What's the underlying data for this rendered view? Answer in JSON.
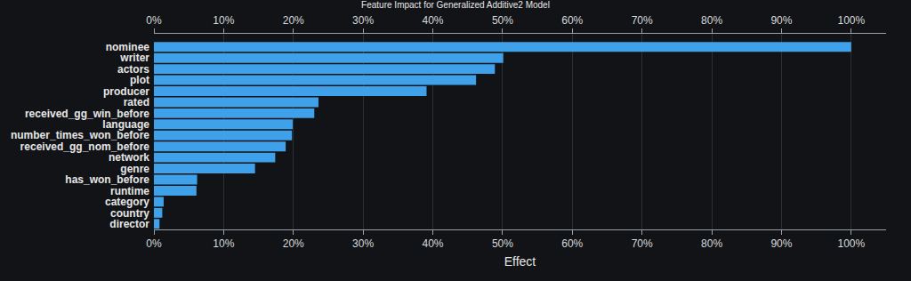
{
  "chart_data": {
    "type": "bar",
    "title": "Feature Impact for Generalized Additive2 Model",
    "x_label": "Effect",
    "orientation": "horizontal",
    "categories": [
      "nominee",
      "writer",
      "actors",
      "plot",
      "producer",
      "rated",
      "received_gg_win_before",
      "language",
      "number_times_won_before",
      "received_gg_nom_before",
      "network",
      "genre",
      "has_won_before",
      "runtime",
      "category",
      "country",
      "director"
    ],
    "values": [
      100,
      50.1,
      48.9,
      46.2,
      39.1,
      23.6,
      23.0,
      19.9,
      19.8,
      18.9,
      17.4,
      14.5,
      6.2,
      6.1,
      1.4,
      1.2,
      0.8
    ],
    "color": "#3ea1e9",
    "xlim": [
      0,
      105
    ],
    "xticks": [
      {
        "value": 0,
        "label": "0%"
      },
      {
        "value": 10,
        "label": "10%"
      },
      {
        "value": 20,
        "label": "20%"
      },
      {
        "value": 30,
        "label": "30%"
      },
      {
        "value": 40,
        "label": "40%"
      },
      {
        "value": 50,
        "label": "50%"
      },
      {
        "value": 60,
        "label": "60%"
      },
      {
        "value": 70,
        "label": "70%"
      },
      {
        "value": 80,
        "label": "80%"
      },
      {
        "value": 90,
        "label": "90%"
      },
      {
        "value": 100,
        "label": "100%"
      }
    ],
    "grid": true
  }
}
